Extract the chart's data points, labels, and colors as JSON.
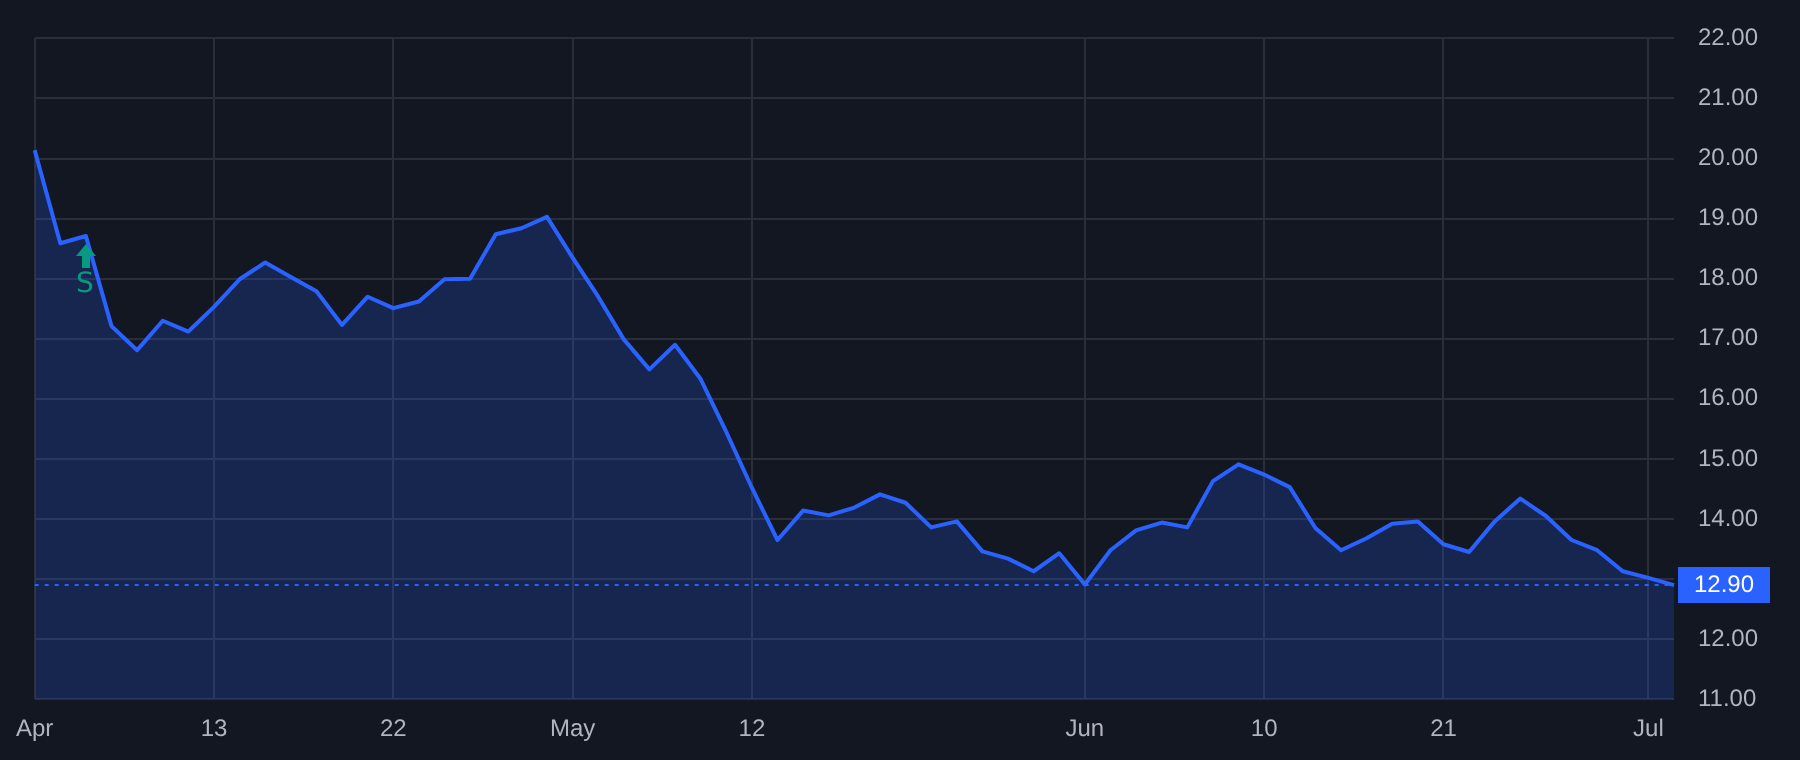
{
  "chart_data": {
    "type": "area",
    "categories": [
      "Apr",
      null,
      null,
      null,
      null,
      null,
      null,
      "13",
      null,
      null,
      null,
      null,
      null,
      null,
      "22",
      null,
      null,
      null,
      null,
      null,
      null,
      "May",
      null,
      null,
      null,
      null,
      null,
      null,
      "12",
      null,
      null,
      null,
      null,
      null,
      null,
      null,
      null,
      null,
      null,
      null,
      null,
      "Jun",
      null,
      null,
      null,
      null,
      null,
      null,
      "10",
      null,
      null,
      null,
      null,
      null,
      null,
      "21",
      null,
      null,
      null,
      null,
      null,
      null,
      null,
      "Jul",
      null
    ],
    "series": [
      {
        "color": "#2962ff",
        "values": [
          20.14,
          18.59,
          18.71,
          17.21,
          16.81,
          17.3,
          17.12,
          17.53,
          17.99,
          18.27,
          18.03,
          17.79,
          17.23,
          17.7,
          17.51,
          17.62,
          17.99,
          18.0,
          18.74,
          18.84,
          19.03,
          18.35,
          17.7,
          16.99,
          16.49,
          16.9,
          16.33,
          15.45,
          14.52,
          13.65,
          14.14,
          14.06,
          14.19,
          14.41,
          14.27,
          13.86,
          13.96,
          13.46,
          13.34,
          13.13,
          13.43,
          12.91,
          13.48,
          13.81,
          13.94,
          13.86,
          14.63,
          14.91,
          14.74,
          14.53,
          13.85,
          13.48,
          13.68,
          13.92,
          13.96,
          13.58,
          13.45,
          13.96,
          14.34,
          14.05,
          13.65,
          13.48,
          13.13,
          13.02,
          12.9
        ]
      }
    ],
    "ylim": [
      11,
      22
    ],
    "yticks": [
      {
        "value": 11,
        "label": "11.00"
      },
      {
        "value": 12,
        "label": "12.00"
      },
      {
        "value": 13,
        "label": null
      },
      {
        "value": 14,
        "label": "14.00"
      },
      {
        "value": 15,
        "label": "15.00"
      },
      {
        "value": 16,
        "label": "16.00"
      },
      {
        "value": 17,
        "label": "17.00"
      },
      {
        "value": 18,
        "label": "18.00"
      },
      {
        "value": 19,
        "label": "19.00"
      },
      {
        "value": 20,
        "label": "20.00"
      },
      {
        "value": 21,
        "label": "21.00"
      },
      {
        "value": 22,
        "label": "22.00"
      }
    ],
    "ref_lines": [
      {
        "axis": "y",
        "value": 12.9,
        "label": "12.90",
        "color": "#2962ff",
        "line_style": "dotted"
      }
    ],
    "annotations": [
      "S"
    ],
    "grid": true,
    "legend": false
  }
}
